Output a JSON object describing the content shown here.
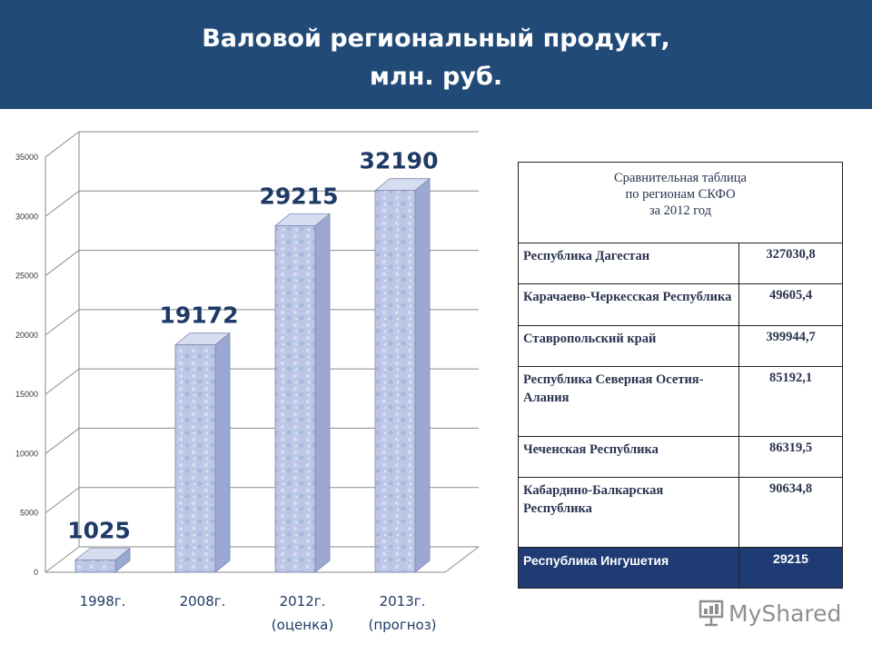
{
  "header": {
    "title_line1": "Валовой региональный продукт,",
    "title_line2": "млн. руб."
  },
  "colors": {
    "header_bg": "#214a77",
    "bar_front": "#bcc8e6",
    "highlight_row_bg": "#1f3b73",
    "data_label": "#1f3a66"
  },
  "chart_data": {
    "type": "bar",
    "style": "3d-column",
    "categories": [
      [
        "1998г."
      ],
      [
        "2008г."
      ],
      [
        "2012г.",
        "(оценка)"
      ],
      [
        "2013г.",
        "(прогноз)"
      ]
    ],
    "values": [
      1025,
      19172,
      29215,
      32190
    ],
    "data_labels": [
      "1025",
      "19172",
      "29215",
      "32190"
    ],
    "ylim": [
      0,
      35000
    ],
    "yticks": [
      0,
      5000,
      10000,
      15000,
      20000,
      25000,
      30000,
      35000
    ],
    "grid": true,
    "legend": "none"
  },
  "table": {
    "caption": [
      "Сравнительная таблица",
      "по регионам СКФО",
      "за 2012 год"
    ],
    "rows": [
      {
        "region": "Республика Дагестан",
        "value": "327030,8"
      },
      {
        "region": "Карачаево-Черкесская Республика",
        "value": "49605,4"
      },
      {
        "region": "Ставропольский край",
        "value": "399944,7"
      },
      {
        "region": "Республика Северная Осетия-Алания",
        "value": "85192,1"
      },
      {
        "region": "Чеченская Республика",
        "value": "86319,5"
      },
      {
        "region": "Кабардино-Балкарская Республика",
        "value": "90634,8"
      },
      {
        "region": "Республика Ингушетия",
        "value": "29215"
      }
    ]
  },
  "watermark": {
    "text": "MyShared",
    "icon": "presentation-board-icon"
  }
}
